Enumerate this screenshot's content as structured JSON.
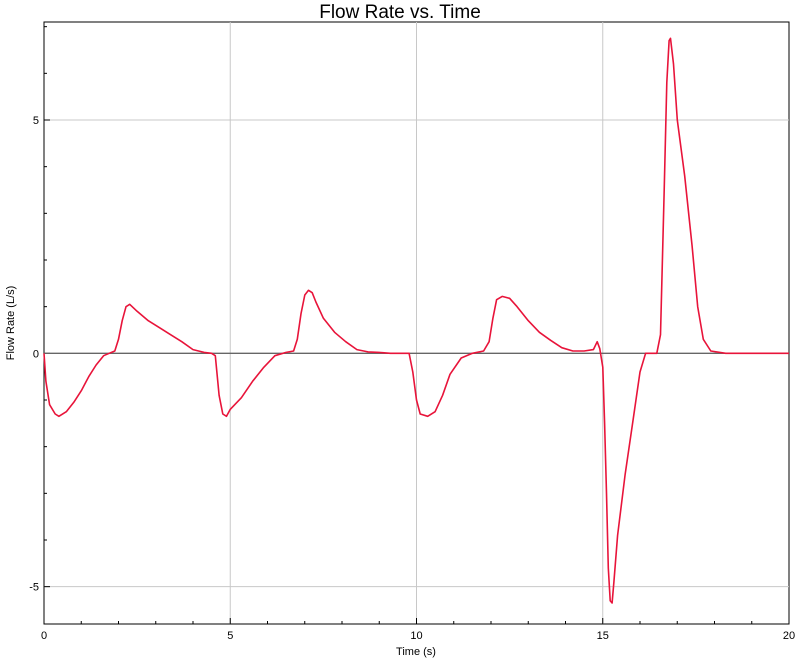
{
  "chart_data": {
    "type": "line",
    "title": "Flow Rate vs. Time",
    "xlabel": "Time (s)",
    "ylabel": "Flow Rate (L/s)",
    "xlim": [
      0,
      20
    ],
    "ylim": [
      -5.8,
      7.1
    ],
    "xticks": [
      0,
      5,
      10,
      15,
      20
    ],
    "yticks": [
      -5,
      0,
      5
    ],
    "grid": true,
    "zero_line": true,
    "line_color": "#e8143a",
    "gridline_color": "#c8c8c8",
    "series": [
      {
        "x": [
          0,
          0.05,
          0.15,
          0.3,
          0.4,
          0.6,
          0.8,
          1.0,
          1.2,
          1.4,
          1.6,
          1.75,
          1.9,
          2.0,
          2.1,
          2.2,
          2.3,
          2.5,
          2.8,
          3.1,
          3.4,
          3.7,
          4.0,
          4.3,
          4.5,
          4.6,
          4.7,
          4.8,
          4.9,
          5.0,
          5.3,
          5.6,
          5.9,
          6.2,
          6.5,
          6.7,
          6.8,
          6.9,
          7.0,
          7.1,
          7.2,
          7.3,
          7.5,
          7.8,
          8.1,
          8.4,
          8.7,
          9.0,
          9.3,
          9.6,
          9.8,
          9.9,
          10.0,
          10.1,
          10.3,
          10.5,
          10.7,
          10.9,
          11.2,
          11.5,
          11.8,
          11.95,
          12.05,
          12.15,
          12.3,
          12.5,
          12.7,
          13.0,
          13.3,
          13.6,
          13.9,
          14.2,
          14.5,
          14.75,
          14.85,
          14.92,
          15.0,
          15.05,
          15.1,
          15.15,
          15.2,
          15.25,
          15.3,
          15.4,
          15.6,
          15.8,
          16.0,
          16.15,
          16.3,
          16.45,
          16.55,
          16.65,
          16.72,
          16.78,
          16.82,
          16.9,
          17.0,
          17.2,
          17.4,
          17.55,
          17.7,
          17.9,
          18.3,
          19.0,
          20.0
        ],
        "y": [
          0,
          -0.6,
          -1.1,
          -1.3,
          -1.35,
          -1.25,
          -1.05,
          -0.8,
          -0.5,
          -0.25,
          -0.05,
          0,
          0.05,
          0.3,
          0.7,
          1.0,
          1.05,
          0.9,
          0.7,
          0.55,
          0.4,
          0.25,
          0.08,
          0.02,
          0.0,
          -0.05,
          -0.9,
          -1.3,
          -1.35,
          -1.2,
          -0.95,
          -0.6,
          -0.3,
          -0.05,
          0.02,
          0.05,
          0.3,
          0.85,
          1.25,
          1.35,
          1.3,
          1.1,
          0.75,
          0.45,
          0.25,
          0.08,
          0.03,
          0.02,
          0.0,
          0.0,
          0.0,
          -0.4,
          -1.0,
          -1.3,
          -1.35,
          -1.25,
          -0.9,
          -0.45,
          -0.1,
          0.0,
          0.05,
          0.25,
          0.75,
          1.15,
          1.22,
          1.18,
          1.0,
          0.7,
          0.45,
          0.28,
          0.12,
          0.05,
          0.05,
          0.08,
          0.25,
          0.1,
          -0.3,
          -1.5,
          -3.0,
          -4.6,
          -5.3,
          -5.35,
          -4.9,
          -3.9,
          -2.6,
          -1.5,
          -0.4,
          0.0,
          0.0,
          0.0,
          0.4,
          3.5,
          5.8,
          6.7,
          6.75,
          6.2,
          5.0,
          3.8,
          2.3,
          1.0,
          0.3,
          0.05,
          0.0,
          0.0,
          0.0
        ]
      }
    ]
  }
}
